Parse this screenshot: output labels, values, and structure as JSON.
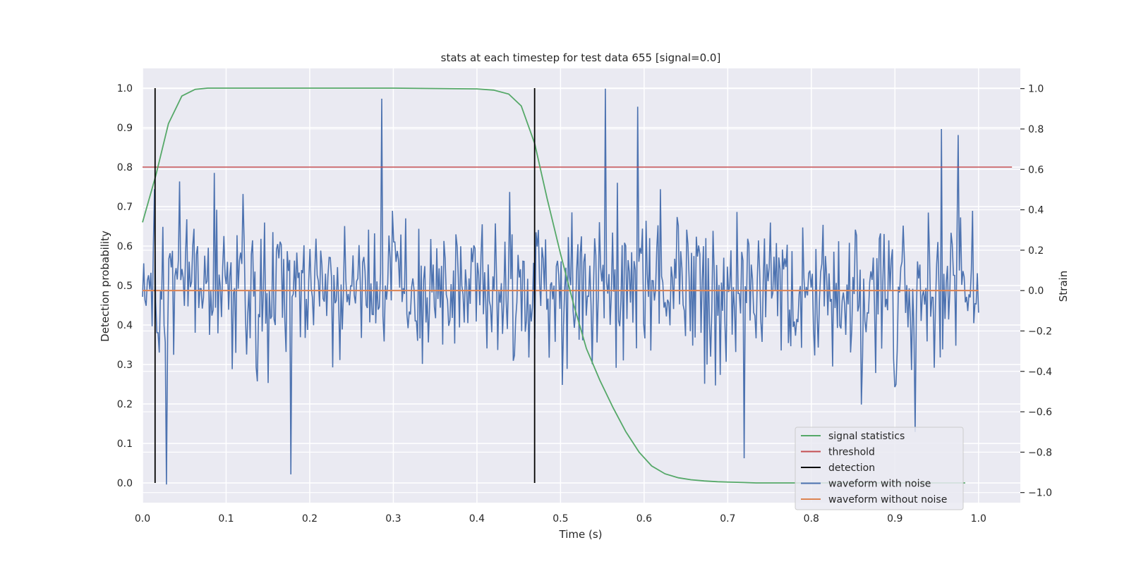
{
  "chart_data": {
    "type": "line",
    "title": "stats at each timestep for test data 655 [signal=0.0]",
    "xlabel": "Time (s)",
    "ylabel": "Detection probability",
    "y2label": "Strain",
    "xlim": [
      0.0,
      1.05
    ],
    "ylim": [
      -0.05,
      1.05
    ],
    "y2lim": [
      -1.05,
      1.1
    ],
    "xticks": [
      "0.0",
      "0.1",
      "0.2",
      "0.3",
      "0.4",
      "0.5",
      "0.6",
      "0.7",
      "0.8",
      "0.9",
      "1.0"
    ],
    "yticks": [
      "0.0",
      "0.1",
      "0.2",
      "0.3",
      "0.4",
      "0.5",
      "0.6",
      "0.7",
      "0.8",
      "0.9",
      "1.0"
    ],
    "y2ticks": [
      "−1.0",
      "−0.8",
      "−0.6",
      "−0.4",
      "−0.2",
      "0.0",
      "0.2",
      "0.4",
      "0.6",
      "0.8",
      "1.0"
    ],
    "grid": true,
    "legend_position": "lower-right",
    "series": [
      {
        "name": "signal statistics",
        "color": "#55a868",
        "axis": "left",
        "x": [
          0.0,
          0.016,
          0.031,
          0.047,
          0.063,
          0.078,
          0.094,
          0.11,
          0.2,
          0.3,
          0.4,
          0.42,
          0.438,
          0.453,
          0.469,
          0.484,
          0.5,
          0.516,
          0.531,
          0.547,
          0.563,
          0.578,
          0.594,
          0.609,
          0.625,
          0.641,
          0.656,
          0.672,
          0.688,
          0.703,
          0.719,
          0.734,
          0.75,
          0.8,
          0.9,
          0.984
        ],
        "y": [
          0.66,
          0.78,
          0.91,
          0.98,
          0.997,
          1.0,
          1.0,
          1.0,
          1.0,
          1.0,
          0.998,
          0.995,
          0.985,
          0.955,
          0.86,
          0.72,
          0.58,
          0.45,
          0.34,
          0.26,
          0.19,
          0.13,
          0.078,
          0.043,
          0.023,
          0.013,
          0.008,
          0.005,
          0.003,
          0.002,
          0.001,
          0.0,
          0.0,
          0.0,
          0.0,
          0.0
        ]
      },
      {
        "name": "threshold",
        "color": "#c44e52",
        "axis": "left",
        "x": [
          0.0,
          1.04
        ],
        "y": [
          0.8,
          0.8
        ]
      },
      {
        "name": "detection",
        "color": "#000000",
        "axis": "left",
        "segments": [
          {
            "x": 0.015,
            "y": [
              0.0,
              1.0
            ]
          },
          {
            "x": 0.469,
            "y": [
              0.0,
              1.0
            ]
          }
        ]
      },
      {
        "name": "waveform with noise",
        "color": "#4c72b0",
        "axis": "right",
        "x_range": [
          0.0,
          1.0
        ],
        "n_points": 700,
        "amplitude_range": [
          -0.96,
          1.0
        ],
        "highlights": [
          {
            "x": 0.028,
            "y": -0.96
          },
          {
            "x": 0.044,
            "y": 0.54
          },
          {
            "x": 0.286,
            "y": 0.95
          },
          {
            "x": 0.553,
            "y": 1.0
          },
          {
            "x": 0.592,
            "y": 0.91
          },
          {
            "x": 0.178,
            "y": -0.91
          },
          {
            "x": 0.955,
            "y": 0.8
          },
          {
            "x": 0.975,
            "y": 0.77
          },
          {
            "x": 0.924,
            "y": -0.7
          },
          {
            "x": 0.72,
            "y": -0.83
          }
        ]
      },
      {
        "name": "waveform without noise",
        "color": "#dd8452",
        "axis": "right",
        "x": [
          0.0,
          1.0
        ],
        "y": [
          0.0,
          0.0
        ]
      }
    ]
  }
}
